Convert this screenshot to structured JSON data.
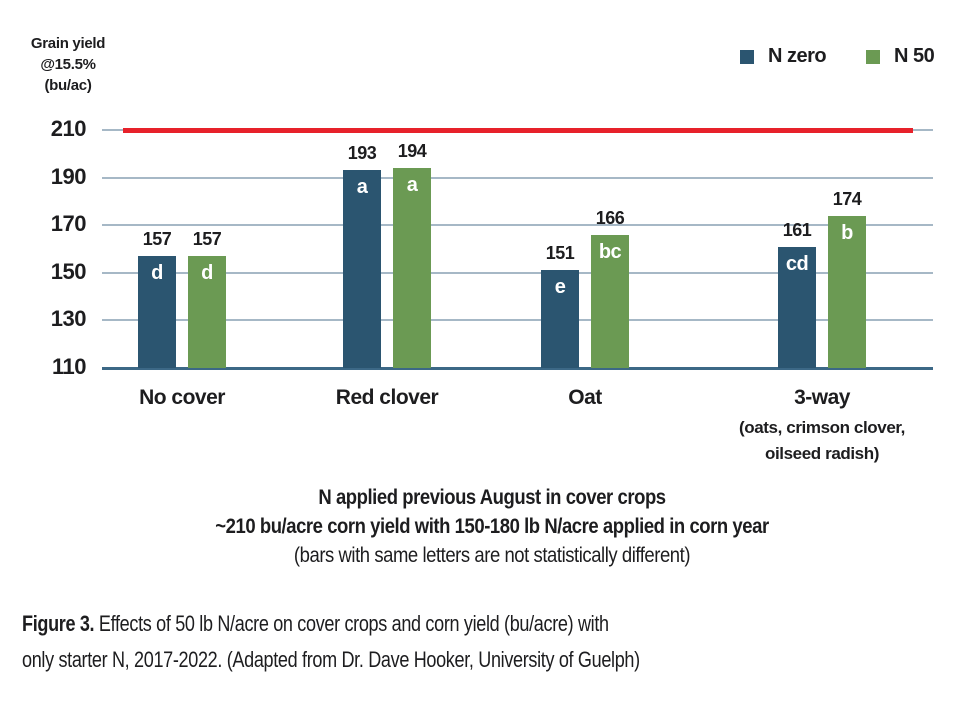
{
  "figure": {
    "y_axis_title_lines": [
      "Grain yield",
      "@15.5%",
      "(bu/ac)"
    ],
    "legend": {
      "items": [
        {
          "label": "N zero",
          "color": "#2b5570"
        },
        {
          "label": "N 50",
          "color": "#6b9a53"
        }
      ]
    },
    "annotation_lines": [
      "N applied previous August in cover crops",
      "~210 bu/acre corn yield with 150-180 lb N/acre applied in corn year",
      "(bars with same letters are not statistically different)"
    ],
    "caption": {
      "line1_bold": "Figure 3.",
      "line1_rest": " Effects of 50 lb N/acre on cover crops and corn yield (bu/acre) with",
      "line2": "only starter N, 2017-2022. (Adapted from Dr. Dave Hooker, University of Guelph)"
    }
  },
  "chart_data": {
    "type": "bar",
    "title": "",
    "ylabel": "Grain yield @15.5% (bu/ac)",
    "xlabel": "",
    "categories": [
      "No cover",
      "Red clover",
      "Oat",
      "3-way"
    ],
    "sublabels": [
      null,
      null,
      null,
      [
        "(oats, crimson clover,",
        "oilseed radish)"
      ]
    ],
    "series": [
      {
        "name": "N zero",
        "color": "#2b5570",
        "values": [
          157,
          193,
          151,
          161
        ],
        "significance_letters": [
          "d",
          "a",
          "e",
          "cd"
        ]
      },
      {
        "name": "N 50",
        "color": "#6b9a53",
        "values": [
          157,
          194,
          166,
          174
        ],
        "significance_letters": [
          "d",
          "a",
          "bc",
          "b"
        ]
      }
    ],
    "yticks": [
      210,
      190,
      170,
      150,
      130,
      110
    ],
    "ylim": [
      110,
      218
    ],
    "grid": true,
    "legend_position": "top-right",
    "reference_line": {
      "value": 210,
      "color": "#e7212a"
    },
    "colors": {
      "gridline": "#a6b8c6",
      "baseline": "#3c6886",
      "text": "#1d1d1f",
      "bar_letter": "#ffffff"
    }
  }
}
